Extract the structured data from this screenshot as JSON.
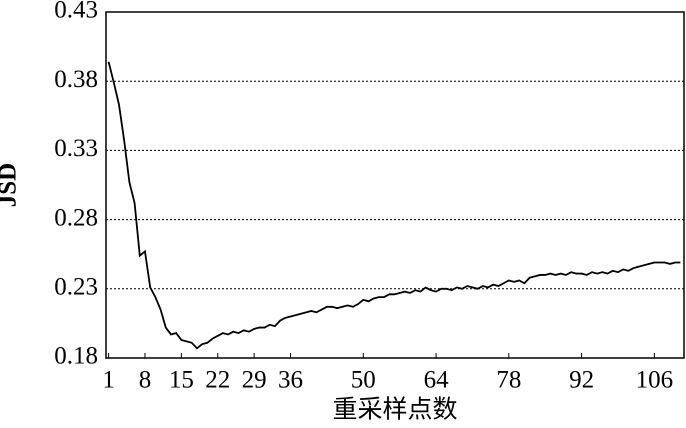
{
  "chart_data": {
    "type": "line",
    "y_label": "JSD",
    "x_label": "重采样点数",
    "x": [
      1,
      2,
      3,
      4,
      5,
      6,
      7,
      8,
      9,
      10,
      11,
      12,
      13,
      14,
      15,
      16,
      17,
      18,
      19,
      20,
      21,
      22,
      23,
      24,
      25,
      26,
      27,
      28,
      29,
      30,
      31,
      32,
      33,
      34,
      35,
      36,
      37,
      38,
      39,
      40,
      41,
      42,
      43,
      44,
      45,
      46,
      47,
      48,
      49,
      50,
      51,
      52,
      53,
      54,
      55,
      56,
      57,
      58,
      59,
      60,
      61,
      62,
      63,
      64,
      65,
      66,
      67,
      68,
      69,
      70,
      71,
      72,
      73,
      74,
      75,
      76,
      77,
      78,
      79,
      80,
      81,
      82,
      83,
      84,
      85,
      86,
      87,
      88,
      89,
      90,
      91,
      92,
      93,
      94,
      95,
      96,
      97,
      98,
      99,
      100,
      101,
      102,
      103,
      104,
      105,
      106,
      107,
      108,
      109,
      110,
      111
    ],
    "series": [
      {
        "name": "JSD",
        "color": "#000000",
        "values": [
          0.394,
          0.379,
          0.363,
          0.337,
          0.307,
          0.292,
          0.254,
          0.257,
          0.231,
          0.224,
          0.215,
          0.202,
          0.197,
          0.198,
          0.193,
          0.192,
          0.191,
          0.187,
          0.19,
          0.191,
          0.194,
          0.196,
          0.198,
          0.197,
          0.199,
          0.198,
          0.2,
          0.199,
          0.201,
          0.202,
          0.202,
          0.204,
          0.203,
          0.207,
          0.209,
          0.21,
          0.211,
          0.212,
          0.213,
          0.214,
          0.213,
          0.215,
          0.217,
          0.217,
          0.216,
          0.217,
          0.218,
          0.217,
          0.219,
          0.222,
          0.221,
          0.223,
          0.224,
          0.224,
          0.226,
          0.226,
          0.227,
          0.228,
          0.227,
          0.229,
          0.228,
          0.231,
          0.229,
          0.228,
          0.23,
          0.23,
          0.229,
          0.231,
          0.23,
          0.232,
          0.231,
          0.23,
          0.232,
          0.231,
          0.233,
          0.232,
          0.234,
          0.236,
          0.235,
          0.236,
          0.234,
          0.238,
          0.239,
          0.24,
          0.24,
          0.241,
          0.24,
          0.241,
          0.24,
          0.242,
          0.241,
          0.241,
          0.24,
          0.242,
          0.241,
          0.242,
          0.241,
          0.243,
          0.242,
          0.244,
          0.243,
          0.245,
          0.246,
          0.247,
          0.248,
          0.249,
          0.249,
          0.249,
          0.248,
          0.249,
          0.249
        ]
      }
    ],
    "xlim": [
      0.5,
      111.7
    ],
    "ylim": [
      0.18,
      0.43
    ],
    "xticks": [
      1,
      8,
      15,
      22,
      29,
      36,
      50,
      64,
      78,
      92,
      106
    ],
    "yticks": [
      0.18,
      0.23,
      0.28,
      0.33,
      0.38,
      0.43
    ],
    "grid": true
  }
}
